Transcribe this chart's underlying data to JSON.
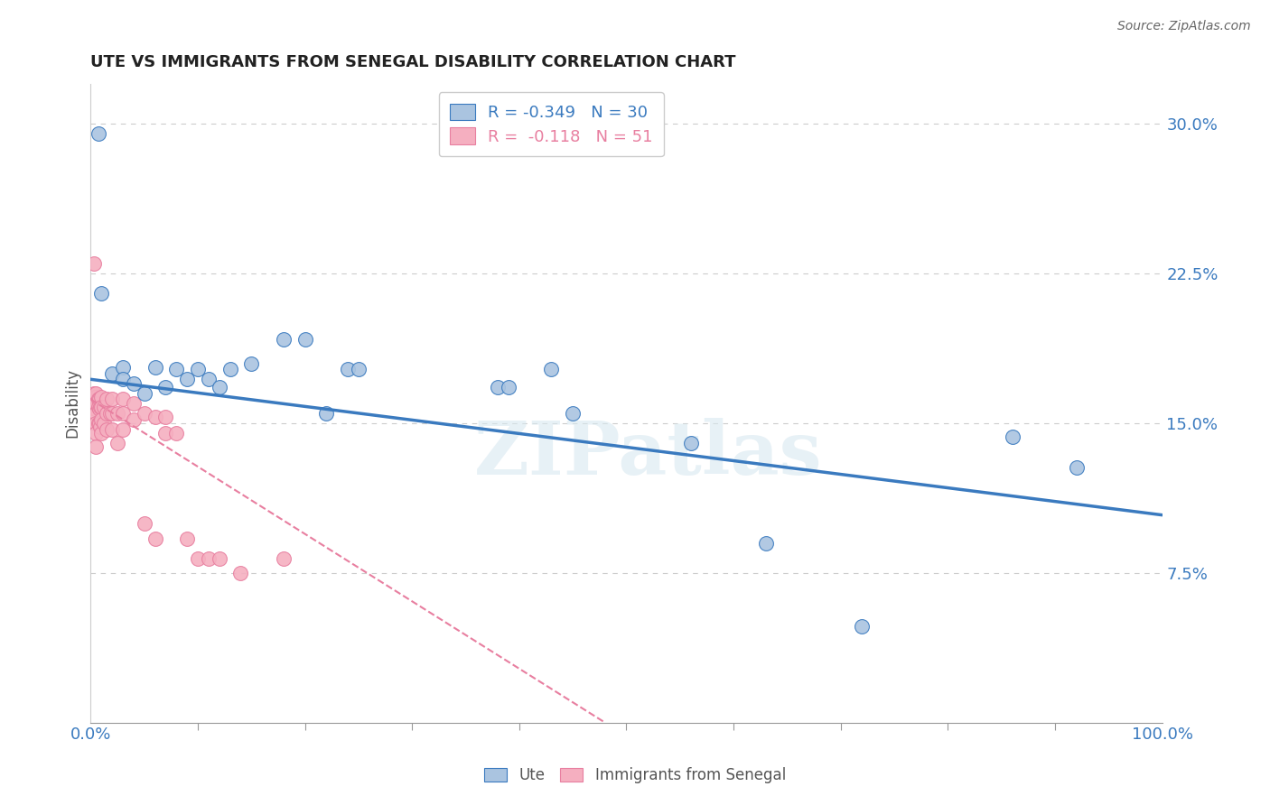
{
  "title": "UTE VS IMMIGRANTS FROM SENEGAL DISABILITY CORRELATION CHART",
  "source": "Source: ZipAtlas.com",
  "ylabel": "Disability",
  "ute_R": -0.349,
  "ute_N": 30,
  "senegal_R": -0.118,
  "senegal_N": 51,
  "ute_color": "#aac4e0",
  "ute_line_color": "#3a7abf",
  "senegal_color": "#f5afc0",
  "senegal_line_color": "#e87fa0",
  "legend_label_1": "Ute",
  "legend_label_2": "Immigrants from Senegal",
  "ytick_labels": [
    "7.5%",
    "15.0%",
    "22.5%",
    "30.0%"
  ],
  "ytick_values": [
    0.075,
    0.15,
    0.225,
    0.3
  ],
  "xlim": [
    0.0,
    1.0
  ],
  "ylim": [
    0.0,
    0.32
  ],
  "watermark": "ZIPatlas",
  "ute_x": [
    0.007,
    0.01,
    0.02,
    0.03,
    0.03,
    0.04,
    0.05,
    0.06,
    0.07,
    0.08,
    0.09,
    0.1,
    0.11,
    0.12,
    0.13,
    0.15,
    0.18,
    0.2,
    0.22,
    0.24,
    0.25,
    0.38,
    0.39,
    0.43,
    0.45,
    0.56,
    0.63,
    0.72,
    0.86,
    0.92
  ],
  "ute_y": [
    0.295,
    0.215,
    0.175,
    0.178,
    0.172,
    0.17,
    0.165,
    0.178,
    0.168,
    0.177,
    0.172,
    0.177,
    0.172,
    0.168,
    0.177,
    0.18,
    0.192,
    0.192,
    0.155,
    0.177,
    0.177,
    0.168,
    0.168,
    0.177,
    0.155,
    0.14,
    0.09,
    0.048,
    0.143,
    0.128
  ],
  "senegal_x": [
    0.003,
    0.003,
    0.004,
    0.004,
    0.005,
    0.005,
    0.005,
    0.005,
    0.005,
    0.005,
    0.007,
    0.007,
    0.007,
    0.008,
    0.008,
    0.008,
    0.009,
    0.009,
    0.01,
    0.01,
    0.01,
    0.01,
    0.012,
    0.012,
    0.015,
    0.015,
    0.015,
    0.018,
    0.02,
    0.02,
    0.02,
    0.025,
    0.025,
    0.03,
    0.03,
    0.03,
    0.04,
    0.04,
    0.05,
    0.05,
    0.06,
    0.06,
    0.07,
    0.07,
    0.08,
    0.09,
    0.1,
    0.11,
    0.12,
    0.14,
    0.18
  ],
  "senegal_y": [
    0.23,
    0.165,
    0.163,
    0.157,
    0.165,
    0.16,
    0.155,
    0.15,
    0.145,
    0.138,
    0.162,
    0.158,
    0.15,
    0.162,
    0.157,
    0.15,
    0.158,
    0.148,
    0.163,
    0.158,
    0.152,
    0.145,
    0.158,
    0.15,
    0.162,
    0.155,
    0.147,
    0.155,
    0.162,
    0.155,
    0.147,
    0.155,
    0.14,
    0.162,
    0.155,
    0.147,
    0.16,
    0.152,
    0.155,
    0.1,
    0.153,
    0.092,
    0.153,
    0.145,
    0.145,
    0.092,
    0.082,
    0.082,
    0.082,
    0.075,
    0.082
  ],
  "ute_trendline_x": [
    0.0,
    1.0
  ],
  "ute_trendline_y": [
    0.172,
    0.104
  ],
  "senegal_trendline_x": [
    0.0,
    0.48
  ],
  "senegal_trendline_y": [
    0.162,
    0.0
  ]
}
